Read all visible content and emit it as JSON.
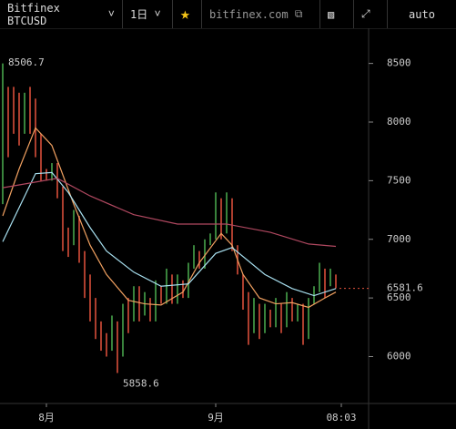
{
  "toolbar": {
    "symbol": "Bitfinex BTCUSD",
    "interval": "1日",
    "site": "bitfinex.com",
    "scale": "auto"
  },
  "chart_data": {
    "type": "ohlc",
    "up_color": "#4caf50",
    "down_color": "#e5533d",
    "xlim": [
      -0.5,
      67
    ],
    "ylim": [
      5600,
      8800
    ],
    "yticks": [
      6000,
      6500,
      7000,
      7500,
      8000,
      8500
    ],
    "xticks": [
      {
        "value": 8,
        "label": "8月"
      },
      {
        "value": 39,
        "label": "9月"
      },
      {
        "value": 62,
        "label": "08:03"
      }
    ],
    "open": [
      7300,
      8300,
      8300,
      8250,
      7900,
      8300,
      8200,
      7900,
      7600,
      7500,
      7650,
      7450,
      7100,
      6950,
      7200,
      6900,
      6700,
      6500,
      6300,
      6200,
      6050,
      6300,
      6000,
      6500,
      6300,
      6600,
      6350,
      6500,
      6300,
      6600,
      6450,
      6700,
      6450,
      6650,
      6500,
      6750,
      6900,
      6750,
      6950,
      7000,
      7350,
      7050,
      7350,
      6950,
      6700,
      6550,
      6200,
      6450,
      6200,
      6400,
      6250,
      6450,
      6250,
      6500,
      6300,
      6450,
      6150,
      6450,
      6550,
      6750,
      6600,
      6700
    ],
    "close": [
      8500,
      7700,
      7900,
      7800,
      8250,
      7900,
      7700,
      7500,
      7500,
      7650,
      7350,
      6900,
      6850,
      7250,
      6800,
      6500,
      6300,
      6150,
      6050,
      6000,
      6350,
      5860,
      6450,
      6200,
      6600,
      6300,
      6550,
      6300,
      6650,
      6450,
      6750,
      6450,
      6700,
      6500,
      6800,
      6950,
      6750,
      7000,
      7050,
      7400,
      7000,
      7400,
      6900,
      6700,
      6400,
      6100,
      6500,
      6150,
      6450,
      6250,
      6500,
      6200,
      6550,
      6300,
      6450,
      6100,
      6500,
      6600,
      6800,
      6500,
      6750,
      6582
    ],
    "lines": [
      {
        "color": "#f0a060",
        "x": [
          0,
          3,
          6,
          9,
          13,
          16,
          19,
          23,
          26,
          29,
          33,
          36,
          40,
          42,
          44,
          47,
          50,
          53,
          56,
          59,
          61
        ],
        "values": [
          7200,
          7600,
          7950,
          7800,
          7300,
          6950,
          6700,
          6480,
          6450,
          6440,
          6550,
          6800,
          7050,
          6950,
          6700,
          6500,
          6450,
          6460,
          6420,
          6500,
          6550
        ]
      },
      {
        "color": "#a8e0f0",
        "x": [
          0,
          6,
          9,
          12,
          16,
          19,
          24,
          29,
          34,
          39,
          42,
          48,
          53,
          57,
          61
        ],
        "values": [
          6980,
          7560,
          7570,
          7400,
          7100,
          6900,
          6720,
          6600,
          6620,
          6880,
          6930,
          6700,
          6580,
          6520,
          6580
        ]
      },
      {
        "color": "#b04860",
        "x": [
          0,
          10,
          16,
          24,
          32,
          41,
          49,
          56,
          61
        ],
        "values": [
          7440,
          7520,
          7370,
          7210,
          7130,
          7130,
          7060,
          6960,
          6940
        ]
      }
    ],
    "annotations": [
      {
        "label": "8506.7",
        "x": 0,
        "value": 8506.7
      },
      {
        "label": "5858.6",
        "x": 21,
        "value": 5858.6
      }
    ],
    "last_price": {
      "label": "6581.6",
      "value": 6581.6
    }
  }
}
